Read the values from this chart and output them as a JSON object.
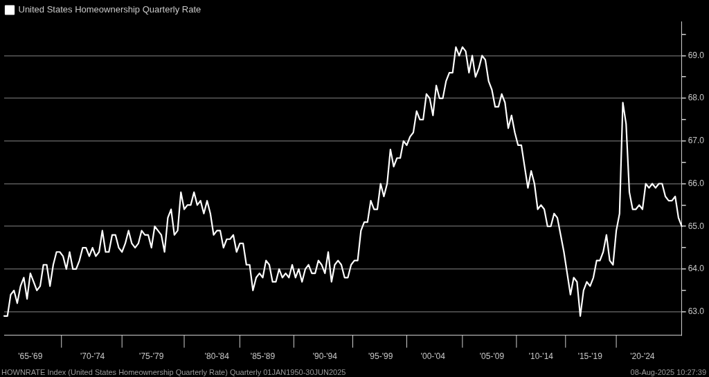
{
  "chart_data": {
    "type": "line",
    "annotations": [
      "HOWNRATE Index (United States Homeownership Quarterly Rate) Quarterly 01JAN1950-30JUN2025",
      "08-Aug-2025 10:27:39"
    ],
    "categories": [
      null,
      null,
      null,
      null,
      null,
      null,
      null,
      null,
      "'65-'69",
      null,
      null,
      null,
      null,
      null,
      null,
      null,
      null,
      null,
      null,
      null,
      null,
      null,
      null,
      null,
      null,
      null,
      null,
      "'70-'74",
      null,
      null,
      null,
      null,
      null,
      null,
      null,
      null,
      null,
      null,
      null,
      null,
      null,
      null,
      null,
      null,
      null,
      "'75-'79",
      null,
      null,
      null,
      null,
      null,
      null,
      null,
      null,
      null,
      null,
      null,
      null,
      null,
      null,
      null,
      null,
      null,
      null,
      null,
      "'80-'84",
      null,
      null,
      null,
      null,
      null,
      null,
      null,
      null,
      null,
      null,
      null,
      null,
      null,
      "'85-'89",
      null,
      null,
      null,
      null,
      null,
      null,
      null,
      null,
      null,
      null,
      null,
      null,
      null,
      null,
      null,
      null,
      null,
      null,
      "'90-'94",
      null,
      null,
      null,
      null,
      null,
      null,
      null,
      null,
      null,
      null,
      null,
      null,
      null,
      null,
      null,
      null,
      "'95-'99",
      null,
      null,
      null,
      null,
      null,
      null,
      null,
      null,
      null,
      null,
      null,
      null,
      null,
      null,
      null,
      "'00-'04",
      null,
      null,
      null,
      null,
      null,
      null,
      null,
      null,
      null,
      null,
      null,
      null,
      null,
      null,
      null,
      null,
      null,
      "'05-'09",
      null,
      null,
      null,
      null,
      null,
      null,
      null,
      null,
      null,
      null,
      null,
      null,
      null,
      null,
      "'10-'14",
      null,
      null,
      null,
      null,
      null,
      null,
      null,
      null,
      null,
      null,
      null,
      null,
      null,
      null,
      "'15-'19",
      null,
      null,
      null,
      null,
      null,
      null,
      null,
      null,
      null,
      null,
      null,
      null,
      null,
      null,
      null,
      "'20-'24",
      null,
      null,
      null,
      null,
      null,
      null,
      null,
      null,
      null,
      null,
      null,
      null
    ],
    "series": [
      {
        "name": "United States Homeownership Quarterly Rate",
        "color": "#ffffff",
        "values": [
          62.9,
          62.9,
          63.4,
          63.5,
          63.2,
          63.6,
          63.8,
          63.3,
          63.9,
          63.7,
          63.5,
          63.6,
          64.1,
          64.1,
          63.6,
          64.1,
          64.4,
          64.4,
          64.3,
          64.0,
          64.4,
          64.0,
          64.0,
          64.2,
          64.5,
          64.5,
          64.3,
          64.5,
          64.3,
          64.4,
          64.9,
          64.4,
          64.4,
          64.8,
          64.8,
          64.5,
          64.4,
          64.6,
          64.9,
          64.6,
          64.5,
          64.6,
          64.9,
          64.8,
          64.8,
          64.5,
          65.0,
          64.9,
          64.8,
          64.4,
          65.2,
          65.4,
          64.8,
          64.9,
          65.8,
          65.4,
          65.5,
          65.5,
          65.8,
          65.5,
          65.6,
          65.3,
          65.6,
          65.3,
          64.8,
          64.9,
          64.9,
          64.5,
          64.7,
          64.7,
          64.8,
          64.4,
          64.6,
          64.6,
          64.1,
          64.1,
          63.5,
          63.8,
          63.9,
          63.8,
          64.2,
          64.1,
          63.7,
          63.7,
          64.0,
          63.8,
          63.9,
          63.8,
          64.1,
          63.8,
          64.0,
          63.7,
          64.0,
          64.1,
          63.9,
          63.9,
          64.2,
          64.1,
          63.9,
          64.4,
          63.7,
          64.1,
          64.2,
          64.1,
          63.8,
          63.8,
          64.1,
          64.2,
          64.2,
          64.9,
          65.1,
          65.1,
          65.6,
          65.4,
          65.4,
          66.0,
          65.7,
          66.0,
          66.8,
          66.4,
          66.6,
          66.6,
          67.0,
          66.9,
          67.1,
          67.2,
          67.7,
          67.5,
          67.5,
          68.1,
          68.0,
          67.6,
          68.3,
          68.0,
          68.0,
          68.4,
          68.6,
          68.6,
          69.2,
          69.0,
          69.2,
          69.1,
          68.6,
          69.0,
          68.5,
          68.7,
          69.0,
          68.9,
          68.4,
          68.2,
          67.8,
          67.8,
          68.1,
          67.9,
          67.3,
          67.6,
          67.2,
          66.9,
          66.9,
          66.4,
          65.9,
          66.3,
          66.0,
          65.4,
          65.5,
          65.4,
          65.0,
          65.0,
          65.3,
          65.2,
          64.8,
          64.4,
          63.9,
          63.4,
          63.8,
          63.7,
          62.9,
          63.5,
          63.7,
          63.6,
          63.8,
          64.2,
          64.2,
          64.4,
          64.8,
          64.2,
          64.1,
          64.9,
          65.3,
          67.9,
          67.4,
          65.8,
          65.4,
          65.4,
          65.5,
          65.4,
          66.0,
          65.9,
          66.0,
          65.9,
          66.0,
          66.0,
          65.7,
          65.6,
          65.6,
          65.7,
          65.2,
          65.0
        ]
      }
    ],
    "ylim": [
      62.45,
      69.8
    ],
    "yticks": [
      {
        "value": 63,
        "label": "63.0"
      },
      {
        "value": 63.5,
        "label": null
      },
      {
        "value": 64,
        "label": "64.0"
      },
      {
        "value": 64.5,
        "label": null
      },
      {
        "value": 65,
        "label": "65.0"
      },
      {
        "value": 65.5,
        "label": null
      },
      {
        "value": 66,
        "label": "66.0"
      },
      {
        "value": 66.5,
        "label": null
      },
      {
        "value": 67,
        "label": "67.0"
      },
      {
        "value": 67.5,
        "label": null
      },
      {
        "value": 68,
        "label": "68.0"
      },
      {
        "value": 68.5,
        "label": null
      },
      {
        "value": 69,
        "label": "69.0"
      },
      {
        "value": 69.5,
        "label": null
      }
    ],
    "grid": "y",
    "legend": "top left",
    "marker": "none",
    "line_style": "solid"
  }
}
